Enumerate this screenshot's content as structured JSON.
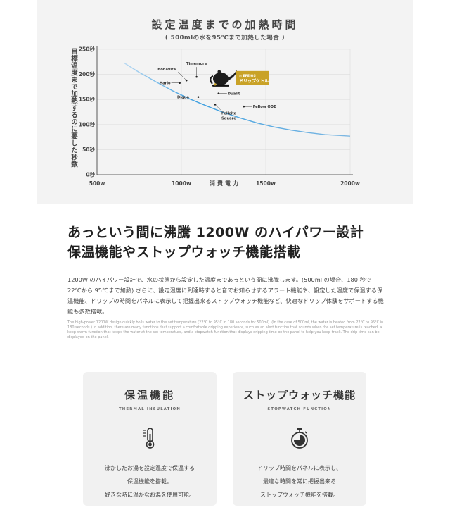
{
  "chart_data": {
    "type": "line",
    "title": "設定温度までの加熱時間",
    "subtitle": "( 500mlの水を95℃まで加熱した場合 )",
    "ylabel": "目標温度まで加熱するのに要した秒数",
    "xlabel": "消費電力",
    "x_ticks": [
      {
        "value": 500,
        "label": "500w"
      },
      {
        "value": 1000,
        "label": "1000w"
      },
      {
        "value": 1500,
        "label": "1500w"
      },
      {
        "value": 2000,
        "label": "2000w"
      }
    ],
    "y_ticks": [
      {
        "value": 0,
        "label": "0秒"
      },
      {
        "value": 50,
        "label": "50秒"
      },
      {
        "value": 100,
        "label": "100秒"
      },
      {
        "value": 150,
        "label": "150秒"
      },
      {
        "value": 200,
        "label": "200秒"
      },
      {
        "value": 250,
        "label": "250秒"
      }
    ],
    "xlim": [
      500,
      2000
    ],
    "ylim": [
      0,
      250
    ],
    "grid": true,
    "curve": {
      "x": [
        660,
        750,
        850,
        950,
        1050,
        1150,
        1250,
        1350,
        1450,
        1550,
        1650,
        1750,
        1850,
        1950,
        2000
      ],
      "y": [
        223,
        204,
        185,
        167,
        151,
        137,
        124,
        113,
        103,
        95,
        89,
        84,
        80,
        78,
        77
      ]
    },
    "points": [
      {
        "label": "Bonavita",
        "x": 1030,
        "y": 188
      },
      {
        "label": "Timemore",
        "x": 1090,
        "y": 195
      },
      {
        "label": "Hario",
        "x": 990,
        "y": 183
      },
      {
        "label": "Diguo",
        "x": 1100,
        "y": 155
      },
      {
        "label": "Dualit",
        "x": 1220,
        "y": 162
      },
      {
        "label": "Felicita Square",
        "x": 1200,
        "y": 140
      },
      {
        "label": "Fellow ODE",
        "x": 1370,
        "y": 136
      },
      {
        "label": "ドリップケトル",
        "x": 1200,
        "y": 180
      }
    ],
    "product_badge": "EPEIOS",
    "highlight_label": "ドリップケトル"
  },
  "headline": {
    "line1": "あっという間に沸騰 1200W のハイパワー設計",
    "line2": "保温機能やストップウォッチ機能搭載"
  },
  "body_ja": "1200W のハイパワー設計で、水の状態から設定した温度まであっという間に沸騰します。(500ml の場合、180 秒で 22℃から 95℃まで加熱) さらに、設定温度に到達時すると音でお知らせするアラート機能や、設定した温度で保温する保温機能、ドリップの時間をパネルに表示して把握出来るストップウォッチ機能など、快適なドリップ体験をサポートする機能も多数搭載。",
  "body_en": "The high-power 1200W design quickly boils water to the set temperature (22°C to 95°C in 180 seconds for 500ml). (In the case of 500ml, the water is heated from 22°C to 95°C in 180 seconds.) In addition, there are many functions that support a comfortable dripping experience, such as an alert function that sounds when the set temperature is reached, a keep-warm function that keeps the water at the set temperature, and a stopwatch function that displays dripping time on the panel to help you keep track. The drip time can be displayed on the panel.",
  "cards": [
    {
      "title": "保温機能",
      "subtitle": "THERMAL INSULATION",
      "icon": "thermometer-icon",
      "lines": [
        "沸かしたお湯を設定温度で保温する",
        "保温機能を搭載。",
        "好きな時に温かなお湯を使用可能。"
      ]
    },
    {
      "title": "ストップウォッチ機能",
      "subtitle": "STOPWATCH FUNCTION",
      "icon": "stopwatch-icon",
      "lines": [
        "ドリップ時間をパネルに表示し、",
        "最適な時間を常に把握出来る",
        "ストップウォッチ機能を搭載。"
      ]
    }
  ],
  "colors": {
    "curve": "#3a9ee0",
    "badge": "#c9a227",
    "panel": "#f3f3f3"
  }
}
